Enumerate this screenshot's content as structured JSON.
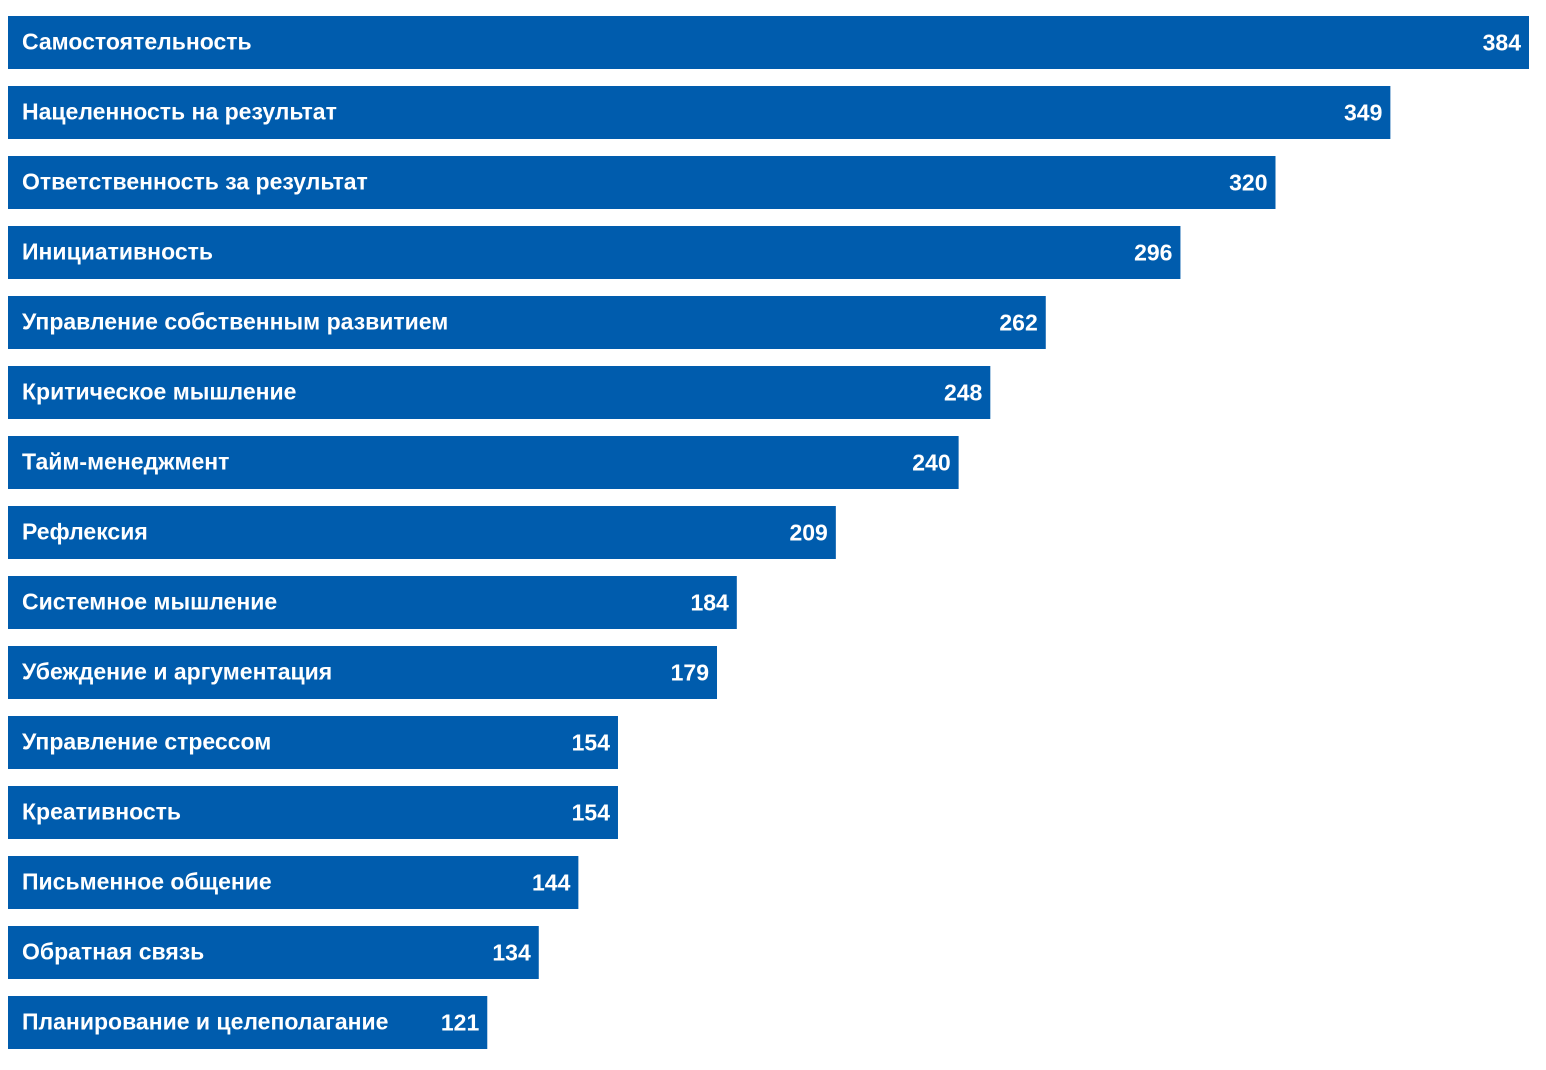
{
  "chart_data": {
    "type": "bar",
    "orientation": "horizontal",
    "color": "#005cad",
    "categories": [
      "Самостоятельность",
      "Нацеленность на результат",
      "Ответственность за результат",
      "Инициативность",
      "Управление собственным развитием",
      "Критическое мышление",
      "Тайм-менеджмент",
      "Рефлексия",
      "Системное мышление",
      "Убеждение и аргументация",
      "Управление стрессом",
      "Креативность",
      "Письменное общение",
      "Обратная связь",
      "Планирование и целеполагание"
    ],
    "values": [
      384,
      349,
      320,
      296,
      262,
      248,
      240,
      209,
      184,
      179,
      154,
      154,
      144,
      134,
      121
    ]
  }
}
